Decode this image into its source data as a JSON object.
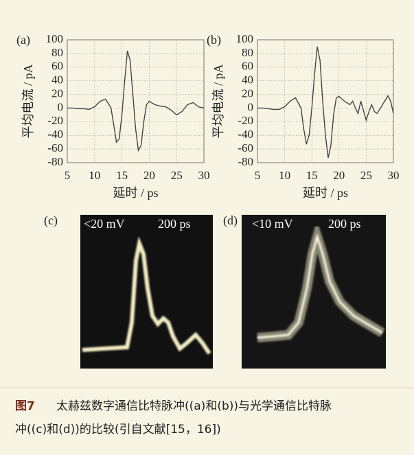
{
  "chart_data": [
    {
      "type": "line",
      "panel": "(a)",
      "xlabel": "延时 / ps",
      "ylabel": "平均电流 / pA",
      "color": "#444444",
      "x": [
        5,
        6,
        7,
        8,
        9,
        10,
        11,
        12,
        13,
        13.5,
        14,
        14.5,
        15,
        15.5,
        16,
        16.5,
        17,
        17.5,
        18,
        18.5,
        19,
        19.5,
        20,
        21,
        22,
        23,
        24,
        25,
        26,
        27,
        28,
        29,
        30
      ],
      "values": [
        0,
        0,
        -1,
        -1,
        -2,
        2,
        10,
        13,
        0,
        -25,
        -50,
        -45,
        -10,
        40,
        84,
        70,
        20,
        -30,
        -62,
        -55,
        -20,
        5,
        10,
        5,
        3,
        2,
        -3,
        -10,
        -5,
        5,
        8,
        2,
        0
      ],
      "xlim": [
        5,
        30
      ],
      "xticks": [
        5,
        10,
        15,
        20,
        25,
        30
      ],
      "ylim": [
        -80,
        100
      ],
      "yticks": [
        -80,
        -60,
        -40,
        -20,
        0,
        20,
        40,
        60,
        80,
        100
      ],
      "grid": true
    },
    {
      "type": "line",
      "panel": "(b)",
      "xlabel": "延时 / ps",
      "ylabel": "平均电流 / pA",
      "color": "#444444",
      "x": [
        5,
        6,
        7,
        8,
        9,
        10,
        11,
        12,
        13,
        13.5,
        14,
        14.5,
        15,
        15.5,
        16,
        16.5,
        17,
        17.5,
        18,
        18.5,
        19,
        19.5,
        20,
        21,
        22,
        22.5,
        23,
        23.5,
        24,
        25,
        25.5,
        26,
        26.5,
        27,
        28,
        29,
        29.5,
        30
      ],
      "values": [
        0,
        0,
        -1,
        -2,
        -2,
        2,
        10,
        15,
        0,
        -30,
        -53,
        -40,
        0,
        50,
        90,
        70,
        10,
        -40,
        -73,
        -55,
        -10,
        15,
        17,
        10,
        5,
        10,
        0,
        -8,
        10,
        -18,
        -5,
        5,
        -5,
        -8,
        5,
        18,
        10,
        -8
      ],
      "xlim": [
        5,
        30
      ],
      "xticks": [
        5,
        10,
        15,
        20,
        25,
        30
      ],
      "ylim": [
        -80,
        100
      ],
      "yticks": [
        -80,
        -60,
        -40,
        -20,
        0,
        20,
        40,
        60,
        80,
        100
      ],
      "grid": true
    }
  ],
  "scope_panels": [
    {
      "label": "(c)",
      "scale": "<20 mV",
      "time": "200 ps"
    },
    {
      "label": "(d)",
      "scale": "<10 mV",
      "time": "200 ps"
    }
  ],
  "caption": {
    "label": "图7",
    "lines": [
      "太赫兹数字通信比特脉冲((a)和(b))与光学通信比特脉",
      "冲((c)和(d))的比较(引自文献[15，16])"
    ]
  }
}
